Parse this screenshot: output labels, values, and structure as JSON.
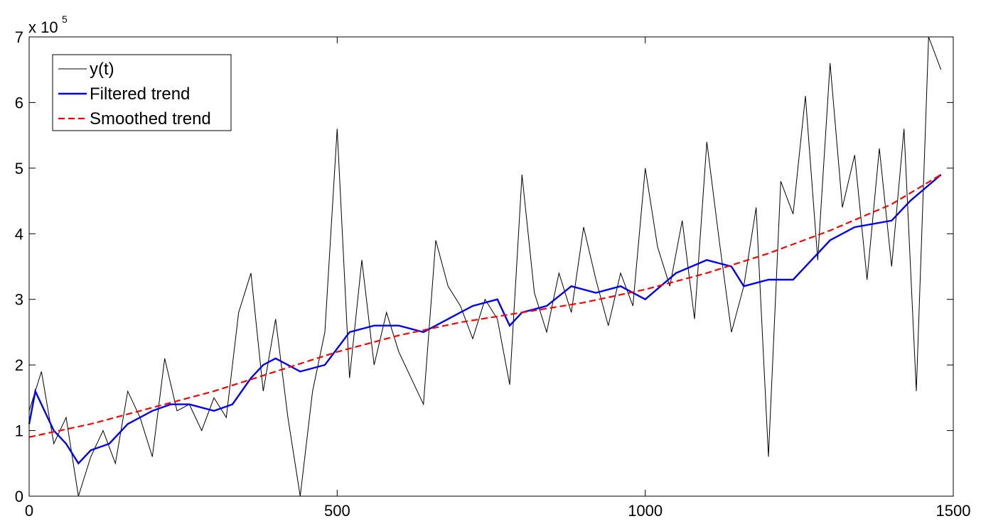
{
  "chart_data": {
    "type": "line",
    "title": "",
    "xlabel": "",
    "ylabel": "",
    "xlim": [
      0,
      1500
    ],
    "ylim": [
      0,
      7
    ],
    "y_exponent_label": "x 10",
    "y_exponent_power": "5",
    "x_ticks": [
      0,
      500,
      1000,
      1500
    ],
    "y_ticks": [
      0,
      1,
      2,
      3,
      4,
      5,
      6,
      7
    ],
    "x_tick_labels": [
      "0",
      "500",
      "1000",
      "1500"
    ],
    "y_tick_labels": [
      "0",
      "1",
      "2",
      "3",
      "4",
      "5",
      "6",
      "7"
    ],
    "legend_position": "top-left",
    "grid": false,
    "series": [
      {
        "name": "y(t)",
        "color": "#000000",
        "style": "solid",
        "x": [
          0,
          20,
          40,
          60,
          80,
          100,
          120,
          140,
          160,
          180,
          200,
          220,
          240,
          260,
          280,
          300,
          320,
          340,
          360,
          380,
          400,
          420,
          440,
          460,
          480,
          500,
          520,
          540,
          560,
          580,
          600,
          620,
          640,
          660,
          680,
          700,
          720,
          740,
          760,
          780,
          800,
          820,
          840,
          860,
          880,
          900,
          920,
          940,
          960,
          980,
          1000,
          1020,
          1040,
          1060,
          1080,
          1100,
          1120,
          1140,
          1160,
          1180,
          1200,
          1220,
          1240,
          1260,
          1280,
          1300,
          1320,
          1340,
          1360,
          1380,
          1400,
          1420,
          1440,
          1460,
          1480
        ],
        "values": [
          1.3,
          1.9,
          0.8,
          1.2,
          0.0,
          0.6,
          1.0,
          0.5,
          1.6,
          1.2,
          0.6,
          2.1,
          1.3,
          1.4,
          1.0,
          1.5,
          1.2,
          2.8,
          3.4,
          1.6,
          2.7,
          1.2,
          0.0,
          1.6,
          2.5,
          5.6,
          1.8,
          3.6,
          2.0,
          2.8,
          2.2,
          1.8,
          1.4,
          3.9,
          3.2,
          2.9,
          2.4,
          3.0,
          2.7,
          1.7,
          4.9,
          3.1,
          2.5,
          3.4,
          2.8,
          4.1,
          3.3,
          2.6,
          3.4,
          2.9,
          5.0,
          3.8,
          3.2,
          4.2,
          2.7,
          5.4,
          3.9,
          2.5,
          3.2,
          4.4,
          0.6,
          4.8,
          4.3,
          6.1,
          3.6,
          6.6,
          4.4,
          5.2,
          3.3,
          5.3,
          3.5,
          5.6,
          1.6,
          7.0,
          6.5
        ]
      },
      {
        "name": "Filtered trend",
        "color": "#0000ff",
        "style": "solid",
        "x": [
          0,
          10,
          20,
          40,
          60,
          80,
          100,
          130,
          160,
          200,
          230,
          260,
          300,
          330,
          360,
          380,
          400,
          440,
          480,
          520,
          560,
          600,
          640,
          680,
          720,
          760,
          780,
          800,
          840,
          880,
          920,
          960,
          1000,
          1050,
          1100,
          1140,
          1160,
          1200,
          1240,
          1300,
          1340,
          1400,
          1430,
          1480
        ],
        "values": [
          1.1,
          1.6,
          1.4,
          1.0,
          0.8,
          0.5,
          0.7,
          0.8,
          1.1,
          1.3,
          1.4,
          1.4,
          1.3,
          1.4,
          1.8,
          2.0,
          2.1,
          1.9,
          2.0,
          2.5,
          2.6,
          2.6,
          2.5,
          2.7,
          2.9,
          3.0,
          2.6,
          2.8,
          2.9,
          3.2,
          3.1,
          3.2,
          3.0,
          3.4,
          3.6,
          3.5,
          3.2,
          3.3,
          3.3,
          3.9,
          4.1,
          4.2,
          4.5,
          4.9
        ]
      },
      {
        "name": "Smoothed trend",
        "color": "#ff0000",
        "style": "dashed",
        "x": [
          0,
          100,
          200,
          300,
          400,
          500,
          600,
          700,
          800,
          900,
          1000,
          1100,
          1200,
          1300,
          1400,
          1480
        ],
        "values": [
          0.9,
          1.1,
          1.35,
          1.6,
          1.9,
          2.2,
          2.45,
          2.65,
          2.8,
          2.95,
          3.15,
          3.4,
          3.7,
          4.05,
          4.45,
          4.9
        ]
      }
    ]
  }
}
